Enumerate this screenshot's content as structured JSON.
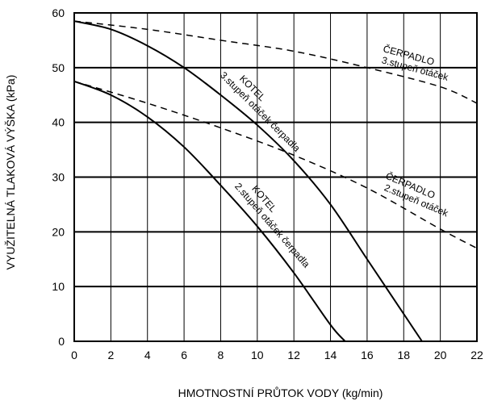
{
  "chart_data": {
    "type": "line",
    "title": "",
    "xlabel": "HMOTNOSTNÍ PRŮTOK VODY (kg/min)",
    "ylabel": "VYUŽITELNÁ TLAKOVÁ VÝŠKA (kPa)",
    "xlim": [
      0,
      22
    ],
    "ylim": [
      0,
      60
    ],
    "x_ticks": [
      0,
      2,
      4,
      6,
      8,
      10,
      12,
      14,
      16,
      18,
      20,
      22
    ],
    "y_ticks": [
      0,
      10,
      20,
      30,
      40,
      50,
      60
    ],
    "grid": true,
    "series": [
      {
        "style": "solid",
        "x": [
          0,
          2,
          4,
          6,
          8,
          10,
          12,
          14,
          16,
          18,
          19
        ],
        "y": [
          58.5,
          57,
          54,
          50,
          45,
          39.5,
          33,
          25,
          15,
          5,
          0
        ]
      },
      {
        "style": "solid",
        "x": [
          0,
          2,
          4,
          6,
          8,
          10,
          12,
          14,
          14.8
        ],
        "y": [
          47.5,
          45,
          41,
          35.5,
          28.5,
          21,
          12.5,
          3,
          0
        ]
      },
      {
        "style": "dashed",
        "x": [
          0,
          4,
          8,
          12,
          16,
          20,
          22
        ],
        "y": [
          58.5,
          57,
          55,
          53,
          50,
          46.5,
          43.5
        ]
      },
      {
        "style": "dashed",
        "x": [
          0,
          4,
          8,
          12,
          16,
          20,
          22
        ],
        "y": [
          47.5,
          43.5,
          39,
          34,
          28,
          20.5,
          17
        ]
      }
    ],
    "annotations": [
      {
        "id": "kotel-3",
        "lines": [
          "KOTEL",
          "3.stupeň otáček čerpadla"
        ]
      },
      {
        "id": "kotel-2",
        "lines": [
          "KOTEL",
          "2.stupeň otáček čerpadla"
        ]
      },
      {
        "id": "cerpadlo-3",
        "lines": [
          "ČERPADLO",
          "3.stupeň otáček"
        ]
      },
      {
        "id": "cerpadlo-2",
        "lines": [
          "ČERPADLO",
          "2.stupeň otáček"
        ]
      }
    ]
  }
}
